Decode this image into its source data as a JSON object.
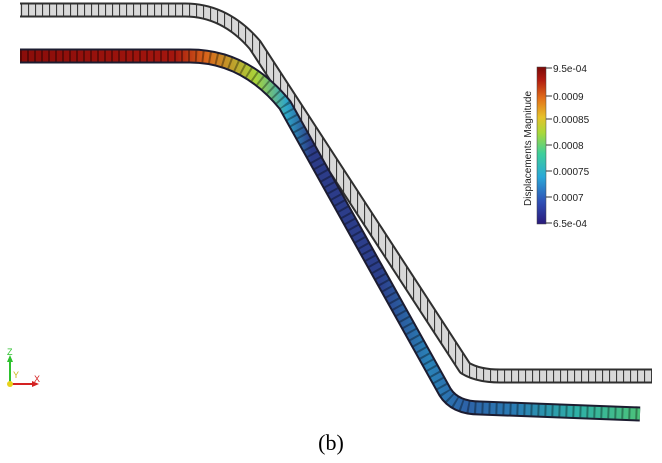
{
  "caption": "(b)",
  "colorbar": {
    "title": "Displacements Magnitude",
    "max_label": "9.5e-04",
    "min_label": "6.5e-04",
    "ticks": [
      "0.0009",
      "0.00085",
      "0.0008",
      "0.00075",
      "0.0007"
    ],
    "range": [
      0.00065,
      0.00095
    ],
    "colormap": [
      "#2a1a7a",
      "#2f4fb5",
      "#2aa8d8",
      "#3fcf9a",
      "#a8d83a",
      "#e6c22a",
      "#e2701a",
      "#b01a10",
      "#7a0a08"
    ]
  },
  "orientation_axes": {
    "z_label": "Z",
    "y_label": "Y",
    "x_label": "X"
  },
  "colors": {
    "undeformed_mesh": "#9c9c9c",
    "background": "#ffffff"
  }
}
